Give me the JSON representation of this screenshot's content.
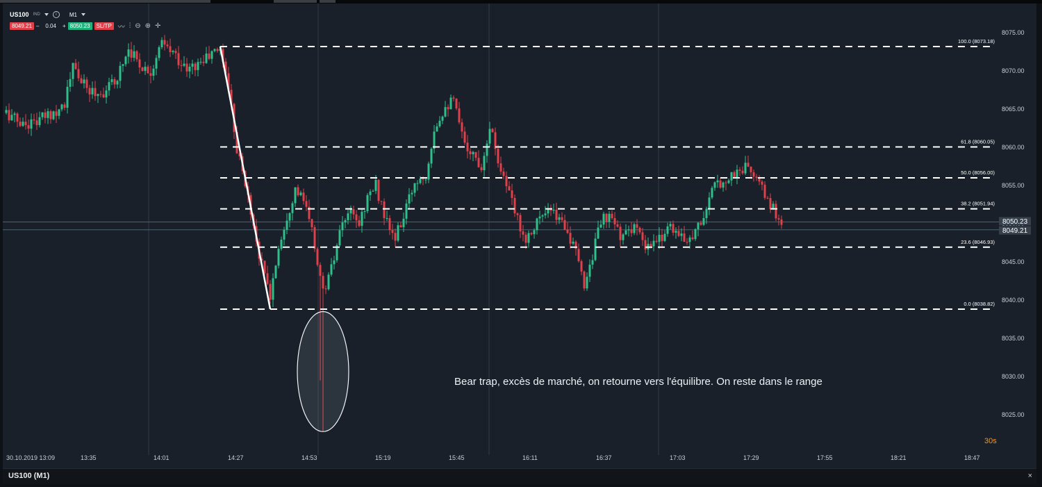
{
  "header": {
    "symbol": "US100",
    "instrument_tag": "IND",
    "timeframe": "M1",
    "bid": "8049.21",
    "minus": "–",
    "quantity": "0.04",
    "plus": "+",
    "ask": "8050.23",
    "sltp": "SL/TP"
  },
  "annotation": "Bear trap, excès de marché, on retourne vers l'équilibre. On reste dans le range",
  "countdown": "30s",
  "footer": {
    "title": "US100 (M1)",
    "close": "×"
  },
  "colors": {
    "background": "#19202a",
    "bull": "#2fbf8a",
    "bear": "#e0404a",
    "fib_line": "#ffffff",
    "bid_tag": "#36414d"
  },
  "chart_data": {
    "type": "candlestick",
    "y_ticks": [
      "8075.00",
      "8070.00",
      "8065.00",
      "8060.00",
      "8055.00",
      "8050.00",
      "8045.00",
      "8040.00",
      "8035.00",
      "8030.00",
      "8025.00"
    ],
    "ylim": [
      8020.0,
      8078.5
    ],
    "x_ticks": [
      "30.10.2019 13:09",
      "13:35",
      "14:01",
      "14:27",
      "14:53",
      "15:19",
      "15:45",
      "16:11",
      "16:37",
      "17:03",
      "17:29",
      "17:55",
      "18:21",
      "18:47"
    ],
    "price_tags": [
      {
        "label": "8050.23",
        "value": 8050.23
      },
      {
        "label": "8049.21",
        "value": 8049.21
      }
    ],
    "fibonacci": [
      {
        "label": "100.0 (8073.18)",
        "value": 8073.18
      },
      {
        "label": "61.8 (8060.05)",
        "value": 8060.05
      },
      {
        "label": "50.0 (8056.00)",
        "value": 8056.0
      },
      {
        "label": "38.2 (8051.94)",
        "value": 8051.94
      },
      {
        "label": "23.6 (8046.93)",
        "value": 8046.93
      },
      {
        "label": "0.0 (8038.82)",
        "value": 8038.82
      }
    ],
    "trend_line": {
      "from": {
        "time": "14:26",
        "price": 8073.18
      },
      "to": {
        "time": "14:44",
        "price": 8038.82
      }
    },
    "highlight_ellipse": {
      "time": "15:03",
      "price_top": 8038.5,
      "price_bottom": 8022.8
    },
    "price_path": [
      [
        "13:09",
        8064.5
      ],
      [
        "13:15",
        8063.0
      ],
      [
        "13:20",
        8063.4
      ],
      [
        "13:26",
        8064.6
      ],
      [
        "13:30",
        8065.8
      ],
      [
        "13:33",
        8070.5
      ],
      [
        "13:38",
        8067.5
      ],
      [
        "13:43",
        8067.0
      ],
      [
        "13:48",
        8068.5
      ],
      [
        "13:53",
        8073.0
      ],
      [
        "13:58",
        8070.5
      ],
      [
        "14:01",
        8070.0
      ],
      [
        "14:05",
        8073.5
      ],
      [
        "14:10",
        8072.0
      ],
      [
        "14:14",
        8070.0
      ],
      [
        "14:19",
        8071.2
      ],
      [
        "14:24",
        8072.5
      ],
      [
        "14:26",
        8073.0
      ],
      [
        "14:29",
        8068.0
      ],
      [
        "14:32",
        8060.0
      ],
      [
        "14:36",
        8053.5
      ],
      [
        "14:40",
        8046.0
      ],
      [
        "14:44",
        8040.5
      ],
      [
        "14:47",
        8047.0
      ],
      [
        "14:50",
        8051.0
      ],
      [
        "14:53",
        8054.5
      ],
      [
        "14:56",
        8053.0
      ],
      [
        "14:59",
        8049.0
      ],
      [
        "15:01",
        8045.0
      ],
      [
        "15:03",
        8041.0
      ],
      [
        "15:06",
        8044.0
      ],
      [
        "15:09",
        8048.5
      ],
      [
        "15:12",
        8051.5
      ],
      [
        "15:16",
        8050.0
      ],
      [
        "15:19",
        8053.5
      ],
      [
        "15:22",
        8055.0
      ],
      [
        "15:26",
        8050.0
      ],
      [
        "15:29",
        8048.0
      ],
      [
        "15:33",
        8052.0
      ],
      [
        "15:36",
        8055.5
      ],
      [
        "15:40",
        8056.5
      ],
      [
        "15:43",
        8062.5
      ],
      [
        "15:47",
        8065.5
      ],
      [
        "15:50",
        8066.0
      ],
      [
        "15:53",
        8061.5
      ],
      [
        "15:56",
        8059.5
      ],
      [
        "16:00",
        8057.5
      ],
      [
        "16:03",
        8063.0
      ],
      [
        "16:06",
        8058.5
      ],
      [
        "16:09",
        8055.0
      ],
      [
        "16:12",
        8051.5
      ],
      [
        "16:16",
        8048.0
      ],
      [
        "16:20",
        8050.5
      ],
      [
        "16:25",
        8051.5
      ],
      [
        "16:30",
        8050.0
      ],
      [
        "16:34",
        8046.0
      ],
      [
        "16:37",
        8042.0
      ],
      [
        "16:40",
        8046.0
      ],
      [
        "16:43",
        8050.5
      ],
      [
        "16:47",
        8050.5
      ],
      [
        "16:51",
        8048.0
      ],
      [
        "16:55",
        8050.0
      ],
      [
        "16:59",
        8046.5
      ],
      [
        "17:03",
        8047.5
      ],
      [
        "17:08",
        8050.0
      ],
      [
        "17:12",
        8048.0
      ],
      [
        "17:16",
        8048.5
      ],
      [
        "17:20",
        8051.0
      ],
      [
        "17:24",
        8055.0
      ],
      [
        "17:29",
        8056.0
      ],
      [
        "17:33",
        8057.0
      ],
      [
        "17:36",
        8057.5
      ],
      [
        "17:40",
        8055.0
      ],
      [
        "17:44",
        8052.5
      ],
      [
        "17:48",
        8050.0
      ]
    ],
    "spikes": [
      {
        "time": "15:03",
        "low": 8022.8
      },
      {
        "time": "15:02",
        "low": 8029.5
      }
    ]
  }
}
